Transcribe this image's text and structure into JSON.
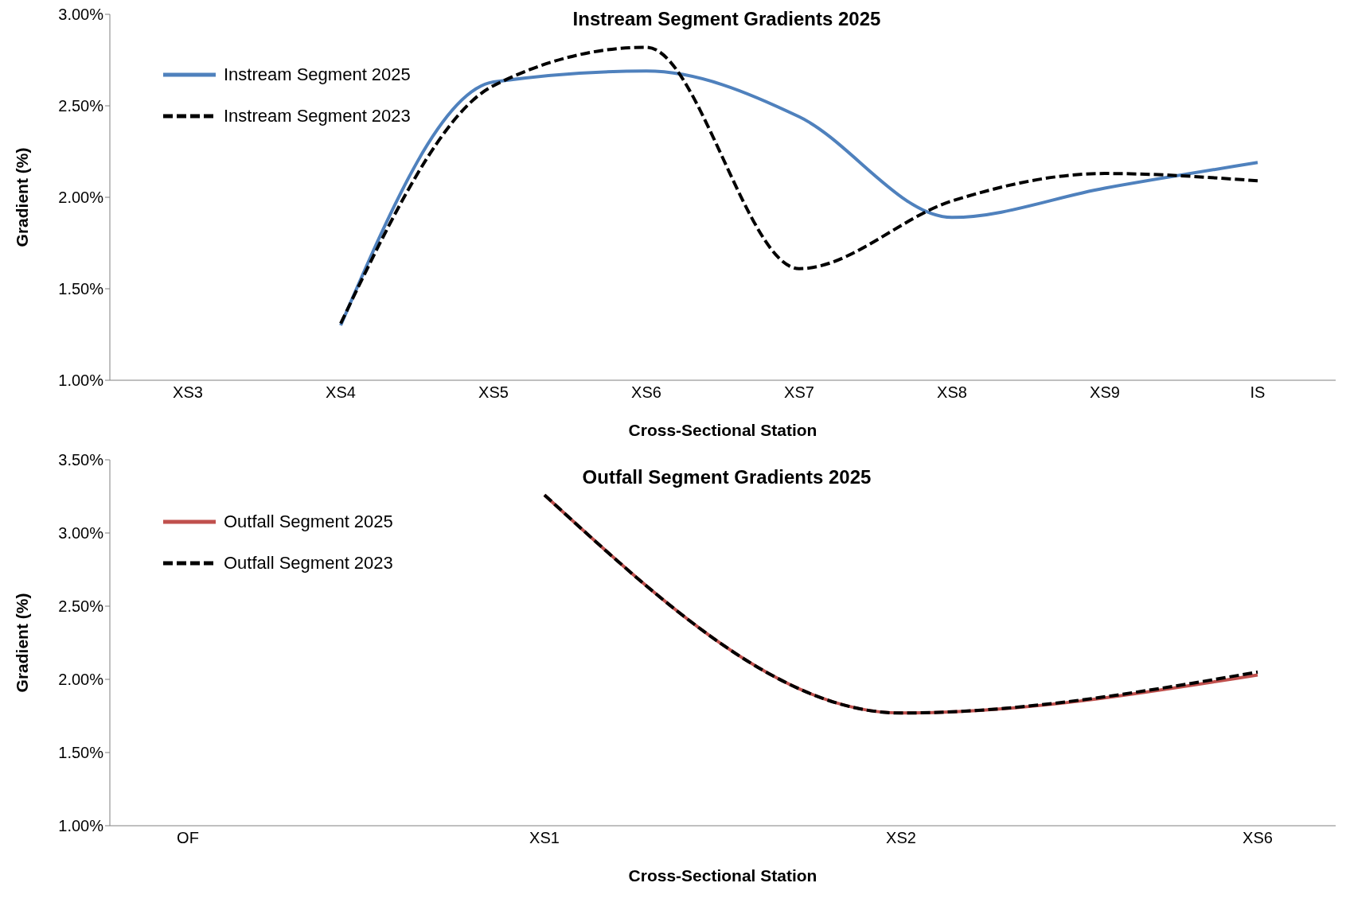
{
  "chart_data": [
    {
      "type": "line",
      "title": "Instream Segment Gradients 2025",
      "xlabel": "Cross-Sectional Station",
      "ylabel": "Gradient (%)",
      "categories": [
        "XS3",
        "XS4",
        "XS5",
        "XS6",
        "XS7",
        "XS8",
        "XS9",
        "IS"
      ],
      "series": [
        {
          "name": "Instream Segment 2025",
          "color": "#4f81bd",
          "line_style": "solid",
          "values": [
            null,
            1.3,
            2.63,
            2.69,
            2.44,
            1.89,
            2.05,
            2.19
          ]
        },
        {
          "name": "Instream Segment 2023",
          "color": "#000000",
          "line_style": "dashed",
          "values": [
            null,
            1.31,
            2.61,
            2.82,
            1.61,
            1.98,
            2.13,
            2.09
          ]
        }
      ],
      "ylim": [
        1,
        3
      ],
      "yticks": [
        {
          "value": 1,
          "label": "1.00%"
        },
        {
          "value": 1.5,
          "label": "1.50%"
        },
        {
          "value": 2,
          "label": "2.00%"
        },
        {
          "value": 2.5,
          "label": "2.50%"
        },
        {
          "value": 3,
          "label": "3.00%"
        }
      ],
      "grid": false,
      "legend": "top left",
      "marker": "none"
    },
    {
      "type": "line",
      "title": "Outfall Segment Gradients 2025",
      "xlabel": "Cross-Sectional Station",
      "ylabel": "Gradient (%)",
      "categories": [
        "OF",
        "XS1",
        "XS2",
        "XS6"
      ],
      "series": [
        {
          "name": "Outfall Segment 2025",
          "color": "#c0504d",
          "line_style": "solid",
          "values": [
            null,
            3.26,
            1.77,
            2.03
          ]
        },
        {
          "name": "Outfall Segment 2023",
          "color": "#000000",
          "line_style": "dashed",
          "values": [
            null,
            3.26,
            1.77,
            2.05
          ]
        }
      ],
      "ylim": [
        1,
        3.5
      ],
      "yticks": [
        {
          "value": 1,
          "label": "1.00%"
        },
        {
          "value": 1.5,
          "label": "1.50%"
        },
        {
          "value": 2,
          "label": "2.00%"
        },
        {
          "value": 2.5,
          "label": "2.50%"
        },
        {
          "value": 3,
          "label": "3.00%"
        },
        {
          "value": 3.5,
          "label": "3.50%"
        }
      ],
      "grid": false,
      "legend": "top left",
      "marker": "none"
    }
  ]
}
